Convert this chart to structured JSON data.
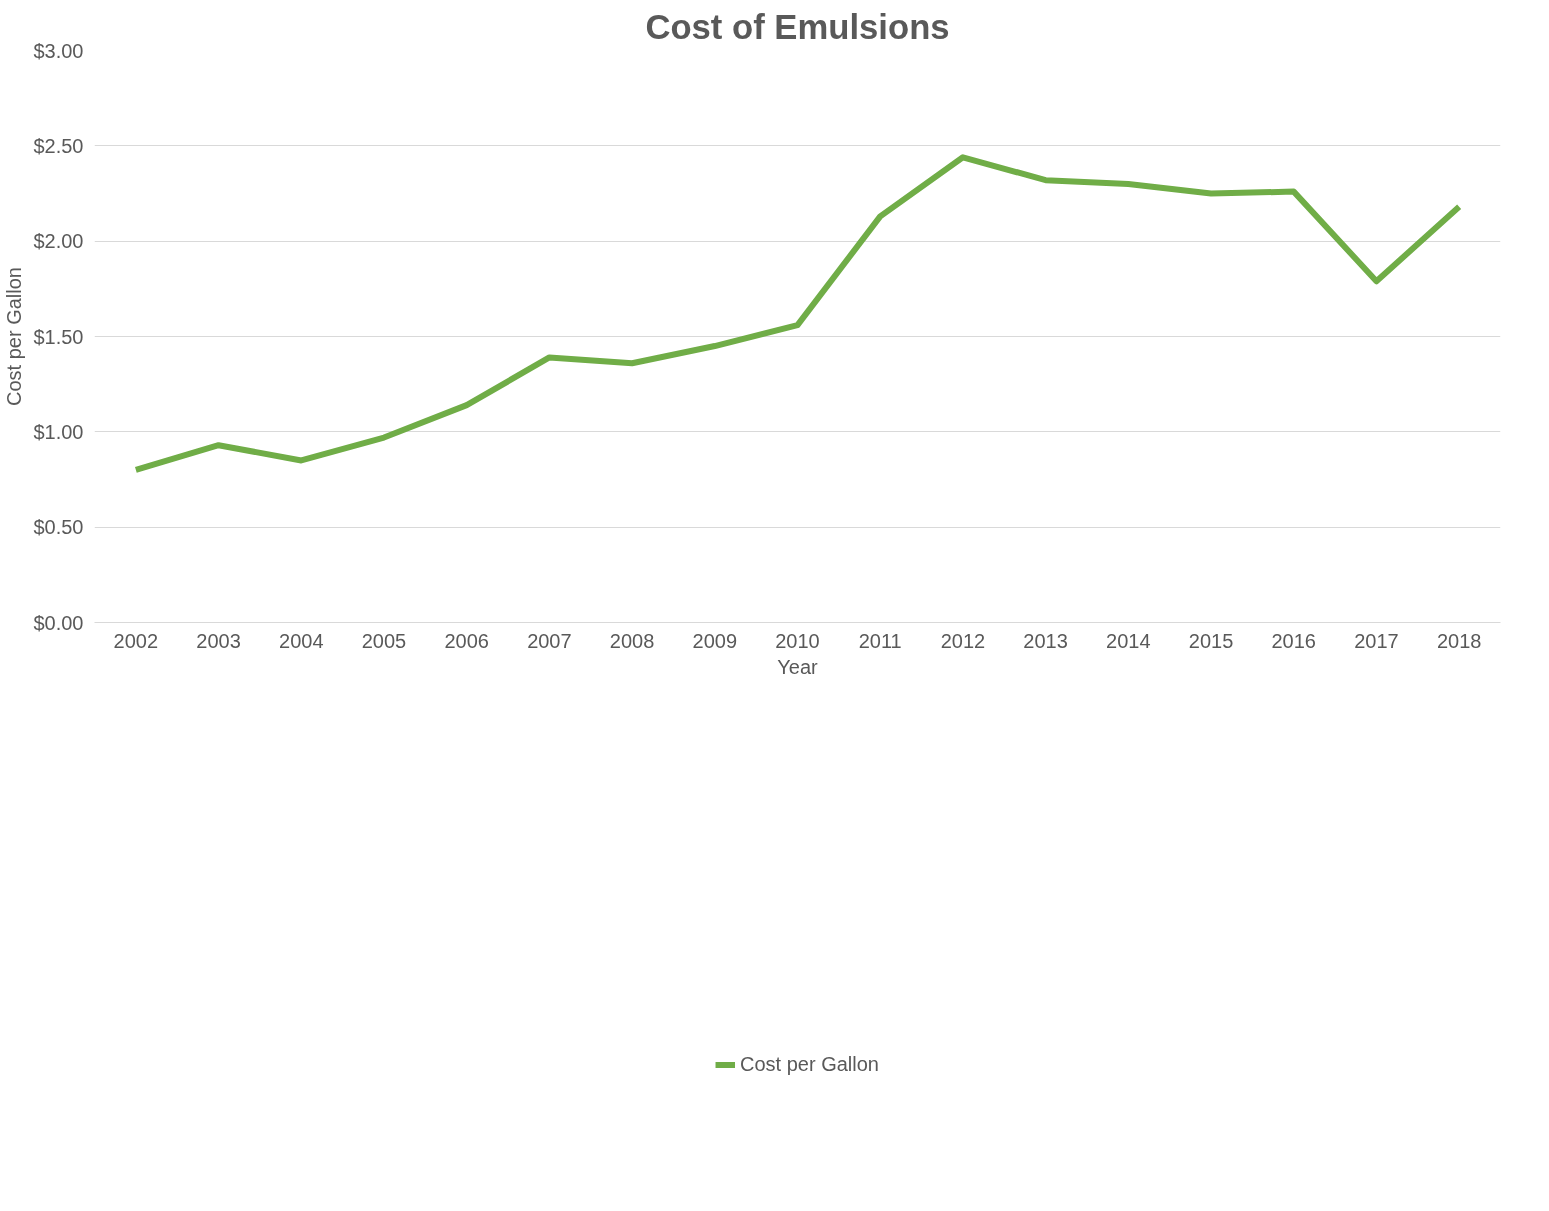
{
  "chart_data": {
    "type": "line",
    "title": "Cost of Emulsions",
    "xlabel": "Year",
    "ylabel": "Cost per Gallon",
    "categories": [
      "2002",
      "2003",
      "2004",
      "2005",
      "2006",
      "2007",
      "2008",
      "2009",
      "2010",
      "2011",
      "2012",
      "2013",
      "2014",
      "2015",
      "2016",
      "2017",
      "2018"
    ],
    "series": [
      {
        "name": "Cost per Gallon",
        "color": "#70ad47",
        "values": [
          0.8,
          0.93,
          0.85,
          0.97,
          1.14,
          1.39,
          1.36,
          1.45,
          1.56,
          2.13,
          2.44,
          2.32,
          2.3,
          2.25,
          2.26,
          1.79,
          2.18
        ]
      }
    ],
    "ylim": [
      0,
      3
    ],
    "yticks": [
      {
        "value": 0,
        "label": "$0.00"
      },
      {
        "value": 0.5,
        "label": "$0.50"
      },
      {
        "value": 1,
        "label": "$1.00"
      },
      {
        "value": 1.5,
        "label": "$1.50"
      },
      {
        "value": 2,
        "label": "$2.00"
      },
      {
        "value": 2.5,
        "label": "$2.50"
      },
      {
        "value": 3,
        "label": "$3.00"
      }
    ],
    "grid": "y",
    "legend": "bottom",
    "marker": "none",
    "line_style": "solid"
  }
}
